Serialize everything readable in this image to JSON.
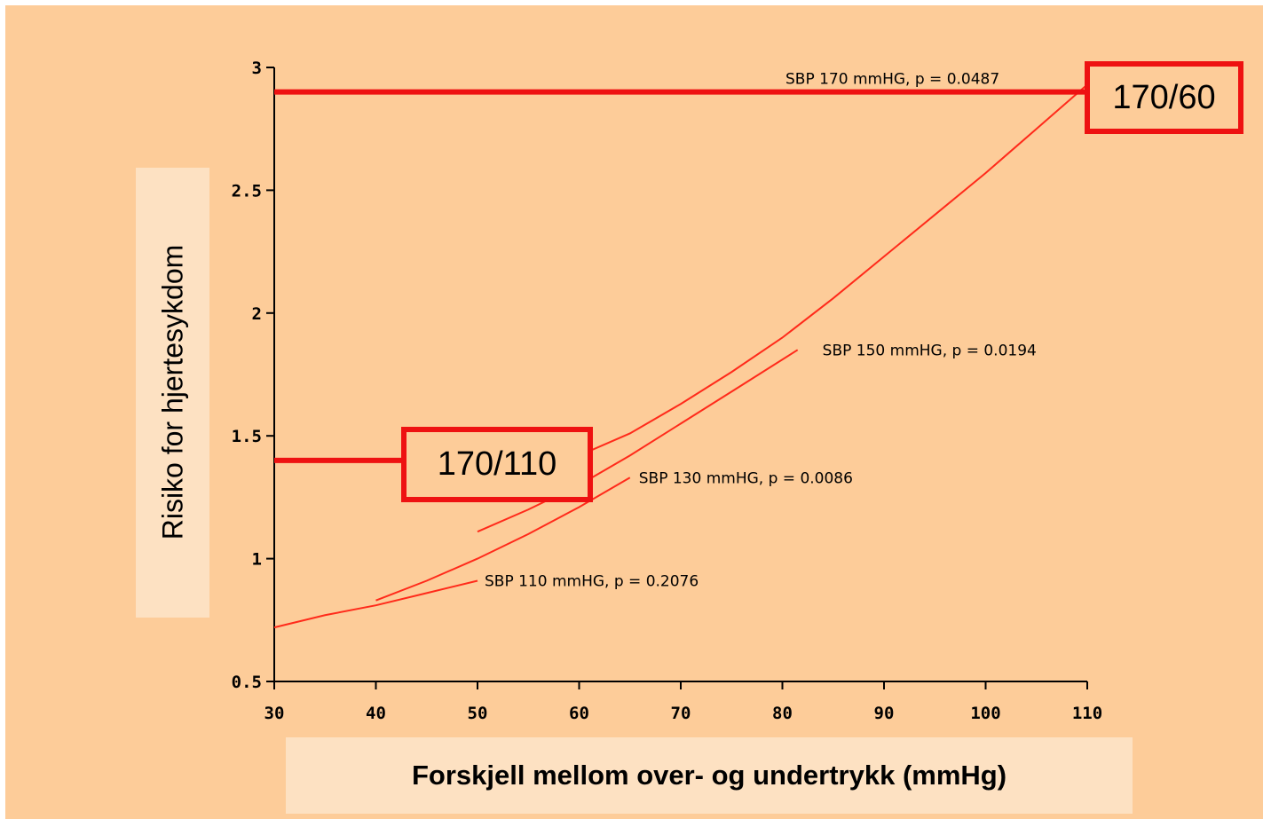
{
  "chart_data": {
    "type": "line",
    "title": "",
    "xlabel": "Forskjell mellom over- og undertrykk (mmHg)",
    "ylabel": "Risiko for hjertesykdom",
    "xlim": [
      30,
      110
    ],
    "ylim": [
      0.5,
      3
    ],
    "x_ticks": [
      "30",
      "40",
      "50",
      "60",
      "70",
      "80",
      "90",
      "100",
      "110"
    ],
    "y_ticks": [
      "0.5",
      "1",
      "1.5",
      "2",
      "2.5",
      "3"
    ],
    "line_color": "#ff2a1a",
    "series": [
      {
        "name": "SBP 110 mmHG, p = 0.2076",
        "x": [
          30,
          35,
          40,
          45,
          50
        ],
        "y": [
          0.72,
          0.77,
          0.81,
          0.86,
          0.91
        ]
      },
      {
        "name": "SBP 130 mmHG, p = 0.0086",
        "x": [
          40,
          45,
          50,
          55,
          60,
          65
        ],
        "y": [
          0.83,
          0.91,
          1.0,
          1.1,
          1.21,
          1.33
        ]
      },
      {
        "name": "SBP 150 mmHG, p = 0.0194",
        "x": [
          50,
          55,
          60,
          65,
          70,
          75,
          81.5
        ],
        "y": [
          1.11,
          1.2,
          1.3,
          1.42,
          1.55,
          1.68,
          1.85
        ]
      },
      {
        "name": "SBP 170 mmHG, p = 0.0487",
        "x": [
          60,
          65,
          70,
          75,
          80,
          85,
          90,
          95,
          100,
          105,
          110
        ],
        "y": [
          1.42,
          1.51,
          1.63,
          1.76,
          1.9,
          2.06,
          2.23,
          2.4,
          2.57,
          2.75,
          2.93
        ]
      }
    ],
    "annotations": [
      {
        "label": "170/60",
        "y": 2.9
      },
      {
        "label": "170/110",
        "y": 1.4
      }
    ],
    "highlight_color": "#ee1111"
  }
}
